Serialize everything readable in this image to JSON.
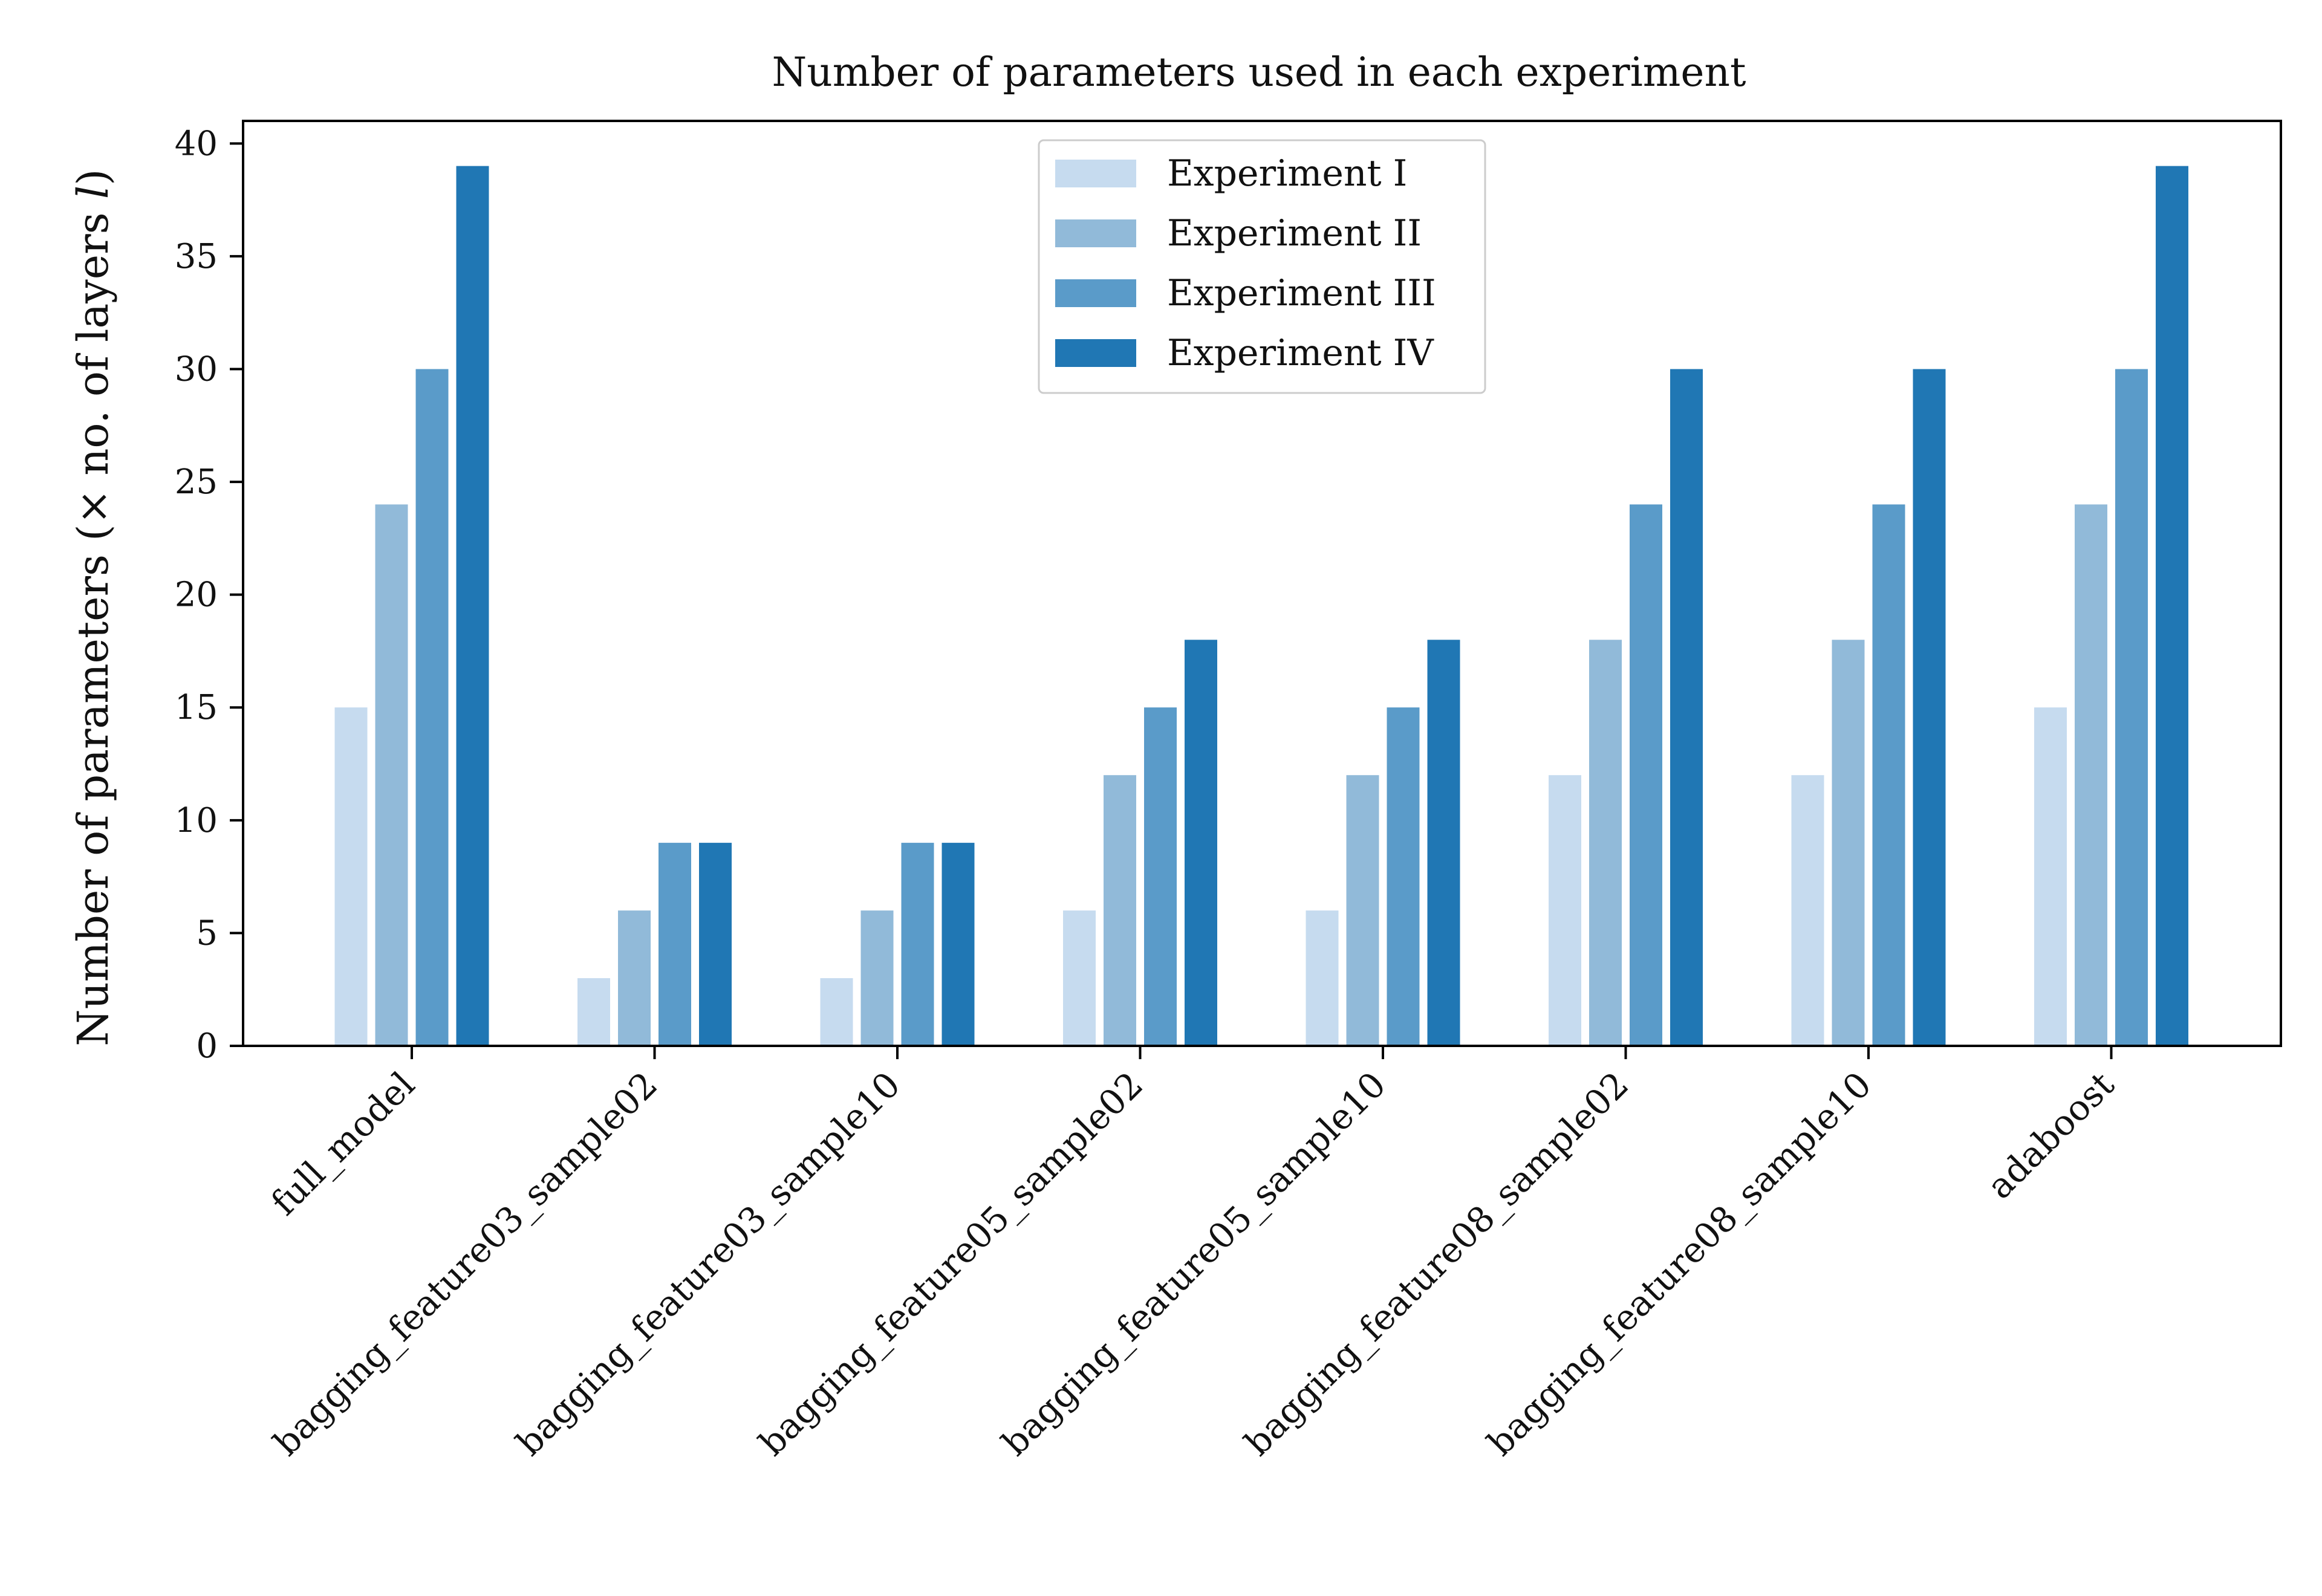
{
  "chart_data": {
    "type": "bar",
    "title": "Number of parameters used in each experiment",
    "xlabel": "",
    "ylabel": "Number of parameters (× no. of layers l)",
    "ylabel_parts": {
      "prefix": "Number of parameters (× no. of layers ",
      "italic": "l",
      "suffix": ")"
    },
    "ylim": [
      0,
      41
    ],
    "yticks": [
      0,
      5,
      10,
      15,
      20,
      25,
      30,
      35,
      40
    ],
    "ytick_labels": [
      "0",
      "5",
      "10",
      "15",
      "20",
      "25",
      "30",
      "35",
      "40"
    ],
    "grid": false,
    "legend_position": "top-center",
    "categories": [
      "full_model",
      "bagging_feature03_sample02",
      "bagging_feature03_sample10",
      "bagging_feature05_sample02",
      "bagging_feature05_sample10",
      "bagging_feature08_sample02",
      "bagging_feature08_sample10",
      "adaboost"
    ],
    "series": [
      {
        "name": "Experiment I",
        "color": "#c6dbef",
        "values": [
          15,
          3,
          3,
          6,
          6,
          12,
          12,
          15
        ]
      },
      {
        "name": "Experiment II",
        "color": "#91bad9",
        "values": [
          24,
          6,
          6,
          12,
          12,
          18,
          18,
          24
        ]
      },
      {
        "name": "Experiment III",
        "color": "#5a9bc9",
        "values": [
          30,
          9,
          9,
          15,
          15,
          24,
          24,
          30
        ]
      },
      {
        "name": "Experiment IV",
        "color": "#2077b4",
        "values": [
          39,
          9,
          9,
          18,
          18,
          30,
          30,
          39
        ]
      }
    ]
  }
}
